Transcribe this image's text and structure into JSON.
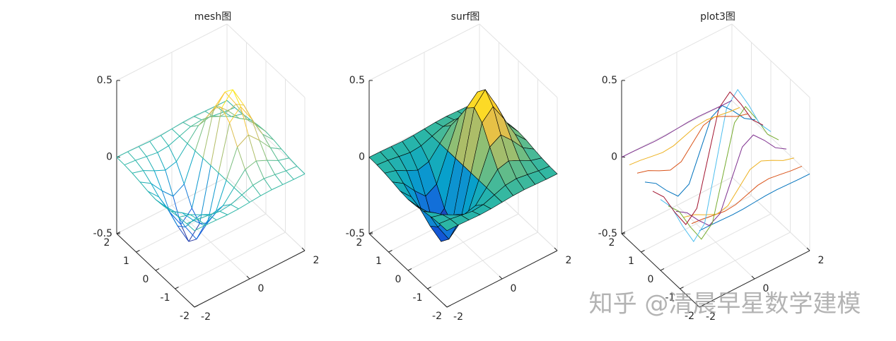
{
  "chart_data": [
    {
      "type": "mesh",
      "title": "mesh图",
      "x": [
        -2,
        -1.6,
        -1.2,
        -0.8,
        -0.4,
        0,
        0.4,
        0.8,
        1.2,
        1.6,
        2
      ],
      "y": [
        -2,
        -1.6,
        -1.2,
        -0.8,
        -0.4,
        0,
        0.4,
        0.8,
        1.2,
        1.6,
        2
      ],
      "z": [
        [
          -0.001,
          -0.002,
          -0.005,
          -0.008,
          -0.006,
          0,
          0.006,
          0.008,
          0.005,
          0.002,
          0.001
        ],
        [
          -0.003,
          -0.01,
          -0.022,
          -0.033,
          -0.026,
          0,
          0.026,
          0.033,
          0.022,
          0.01,
          0.003
        ],
        [
          -0.009,
          -0.029,
          -0.067,
          -0.1,
          -0.081,
          0,
          0.081,
          0.1,
          0.067,
          0.029,
          0.009
        ],
        [
          -0.019,
          -0.065,
          -0.15,
          -0.222,
          -0.18,
          0,
          0.18,
          0.222,
          0.15,
          0.065,
          0.019
        ],
        [
          -0.031,
          -0.105,
          -0.242,
          -0.359,
          -0.29,
          0,
          0.29,
          0.359,
          0.242,
          0.105,
          0.031
        ],
        [
          -0.037,
          -0.124,
          -0.284,
          -0.422,
          -0.341,
          0,
          0.341,
          0.422,
          0.284,
          0.124,
          0.037
        ],
        [
          -0.031,
          -0.105,
          -0.242,
          -0.359,
          -0.29,
          0,
          0.29,
          0.359,
          0.242,
          0.105,
          0.031
        ],
        [
          -0.019,
          -0.065,
          -0.15,
          -0.222,
          -0.18,
          0,
          0.18,
          0.222,
          0.15,
          0.065,
          0.019
        ],
        [
          -0.009,
          -0.029,
          -0.067,
          -0.1,
          -0.081,
          0,
          0.081,
          0.1,
          0.067,
          0.029,
          0.009
        ],
        [
          -0.003,
          -0.01,
          -0.022,
          -0.033,
          -0.026,
          0,
          0.026,
          0.033,
          0.022,
          0.01,
          0.003
        ],
        [
          -0.001,
          -0.002,
          -0.005,
          -0.008,
          -0.006,
          0,
          0.006,
          0.008,
          0.005,
          0.002,
          0.001
        ]
      ],
      "xlim": [
        -2,
        2
      ],
      "ylim": [
        -2,
        2
      ],
      "zlim": [
        -0.5,
        0.5
      ],
      "xticks": [
        -2,
        0,
        2
      ],
      "yticks": [
        -2,
        -1,
        0,
        1,
        2
      ],
      "zticks": [
        -0.5,
        0,
        0.5
      ],
      "grid": true,
      "colormap": [
        "#352a87",
        "#0f5cdd",
        "#1481d6",
        "#06a4ca",
        "#2eb7a4",
        "#87bf77",
        "#d1bb59",
        "#fec832",
        "#f9fb0e"
      ]
    },
    {
      "type": "surf",
      "title": "surf图",
      "x": [
        -2,
        -1.6,
        -1.2,
        -0.8,
        -0.4,
        0,
        0.4,
        0.8,
        1.2,
        1.6,
        2
      ],
      "y": [
        -2,
        -1.6,
        -1.2,
        -0.8,
        -0.4,
        0,
        0.4,
        0.8,
        1.2,
        1.6,
        2
      ],
      "z": [
        [
          -0.001,
          -0.002,
          -0.005,
          -0.008,
          -0.006,
          0,
          0.006,
          0.008,
          0.005,
          0.002,
          0.001
        ],
        [
          -0.003,
          -0.01,
          -0.022,
          -0.033,
          -0.026,
          0,
          0.026,
          0.033,
          0.022,
          0.01,
          0.003
        ],
        [
          -0.009,
          -0.029,
          -0.067,
          -0.1,
          -0.081,
          0,
          0.081,
          0.1,
          0.067,
          0.029,
          0.009
        ],
        [
          -0.019,
          -0.065,
          -0.15,
          -0.222,
          -0.18,
          0,
          0.18,
          0.222,
          0.15,
          0.065,
          0.019
        ],
        [
          -0.031,
          -0.105,
          -0.242,
          -0.359,
          -0.29,
          0,
          0.29,
          0.359,
          0.242,
          0.105,
          0.031
        ],
        [
          -0.037,
          -0.124,
          -0.284,
          -0.422,
          -0.341,
          0,
          0.341,
          0.422,
          0.284,
          0.124,
          0.037
        ],
        [
          -0.031,
          -0.105,
          -0.242,
          -0.359,
          -0.29,
          0,
          0.29,
          0.359,
          0.242,
          0.105,
          0.031
        ],
        [
          -0.019,
          -0.065,
          -0.15,
          -0.222,
          -0.18,
          0,
          0.18,
          0.222,
          0.15,
          0.065,
          0.019
        ],
        [
          -0.009,
          -0.029,
          -0.067,
          -0.1,
          -0.081,
          0,
          0.081,
          0.1,
          0.067,
          0.029,
          0.009
        ],
        [
          -0.003,
          -0.01,
          -0.022,
          -0.033,
          -0.026,
          0,
          0.026,
          0.033,
          0.022,
          0.01,
          0.003
        ],
        [
          -0.001,
          -0.002,
          -0.005,
          -0.008,
          -0.006,
          0,
          0.006,
          0.008,
          0.005,
          0.002,
          0.001
        ]
      ],
      "xlim": [
        -2,
        2
      ],
      "ylim": [
        -2,
        2
      ],
      "zlim": [
        -0.5,
        0.5
      ],
      "xticks": [
        -2,
        0,
        2
      ],
      "yticks": [
        -2,
        -1,
        0,
        1,
        2
      ],
      "zticks": [
        -0.5,
        0,
        0.5
      ],
      "grid": true,
      "colormap": [
        "#352a87",
        "#0f5cdd",
        "#1481d6",
        "#06a4ca",
        "#2eb7a4",
        "#87bf77",
        "#d1bb59",
        "#fec832",
        "#f9fb0e"
      ]
    },
    {
      "type": "plot3",
      "title": "plot3图",
      "x": [
        -2,
        -1.6,
        -1.2,
        -0.8,
        -0.4,
        0,
        0.4,
        0.8,
        1.2,
        1.6,
        2
      ],
      "y": [
        -2,
        -1.6,
        -1.2,
        -0.8,
        -0.4,
        0,
        0.4,
        0.8,
        1.2,
        1.6,
        2
      ],
      "z": [
        [
          -0.001,
          -0.002,
          -0.005,
          -0.008,
          -0.006,
          0,
          0.006,
          0.008,
          0.005,
          0.002,
          0.001
        ],
        [
          -0.003,
          -0.01,
          -0.022,
          -0.033,
          -0.026,
          0,
          0.026,
          0.033,
          0.022,
          0.01,
          0.003
        ],
        [
          -0.009,
          -0.029,
          -0.067,
          -0.1,
          -0.081,
          0,
          0.081,
          0.1,
          0.067,
          0.029,
          0.009
        ],
        [
          -0.019,
          -0.065,
          -0.15,
          -0.222,
          -0.18,
          0,
          0.18,
          0.222,
          0.15,
          0.065,
          0.019
        ],
        [
          -0.031,
          -0.105,
          -0.242,
          -0.359,
          -0.29,
          0,
          0.29,
          0.359,
          0.242,
          0.105,
          0.031
        ],
        [
          -0.037,
          -0.124,
          -0.284,
          -0.422,
          -0.341,
          0,
          0.341,
          0.422,
          0.284,
          0.124,
          0.037
        ],
        [
          -0.031,
          -0.105,
          -0.242,
          -0.359,
          -0.29,
          0,
          0.29,
          0.359,
          0.242,
          0.105,
          0.031
        ],
        [
          -0.019,
          -0.065,
          -0.15,
          -0.222,
          -0.18,
          0,
          0.18,
          0.222,
          0.15,
          0.065,
          0.019
        ],
        [
          -0.009,
          -0.029,
          -0.067,
          -0.1,
          -0.081,
          0,
          0.081,
          0.1,
          0.067,
          0.029,
          0.009
        ],
        [
          -0.003,
          -0.01,
          -0.022,
          -0.033,
          -0.026,
          0,
          0.026,
          0.033,
          0.022,
          0.01,
          0.003
        ],
        [
          -0.001,
          -0.002,
          -0.005,
          -0.008,
          -0.006,
          0,
          0.006,
          0.008,
          0.005,
          0.002,
          0.001
        ]
      ],
      "xlim": [
        -2,
        2
      ],
      "ylim": [
        -2,
        2
      ],
      "zlim": [
        -0.5,
        0.5
      ],
      "xticks": [
        -2,
        0,
        2
      ],
      "yticks": [
        -2,
        -1,
        0,
        1,
        2
      ],
      "zticks": [
        -0.5,
        0,
        0.5
      ],
      "grid": true,
      "colors": [
        "#0072bd",
        "#d95319",
        "#edb120",
        "#7e2f8e",
        "#77ac30",
        "#4dbeee",
        "#a2142f"
      ]
    }
  ],
  "watermark": "知乎 @清晨早星数学建模"
}
